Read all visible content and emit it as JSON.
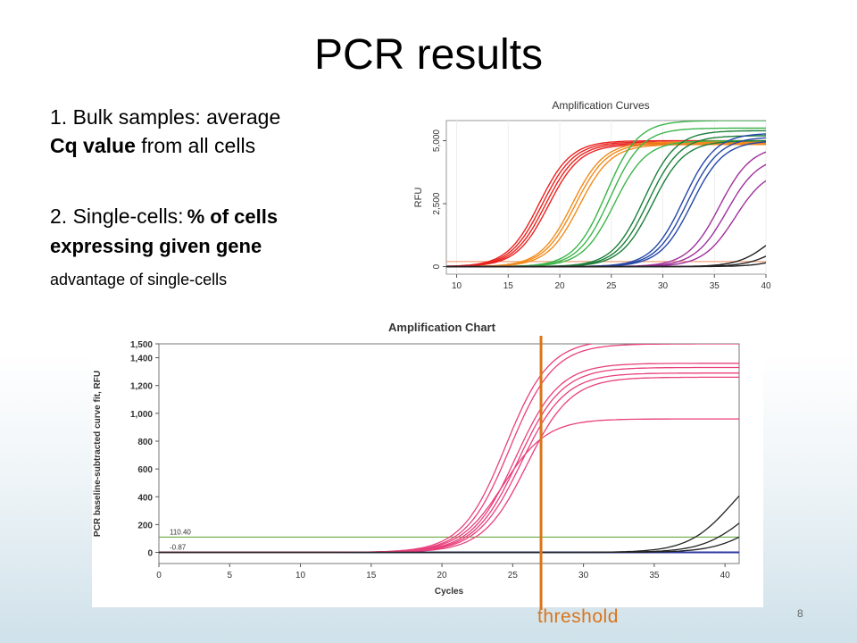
{
  "slide": {
    "title": "PCR results",
    "page_number": "8",
    "bullet1_line1": "1. Bulk samples: average",
    "bullet1_bold": "Cq value",
    "bullet1_rest": " from all cells",
    "bullet2_lead": "2. Single-cells:",
    "bullet2_bold1": "% of cells",
    "bullet2_bold2": "expressing given gene",
    "note": "advantage of single-cells",
    "threshold_label": "threshold"
  },
  "chart_data": [
    {
      "type": "line",
      "title": "Amplification Curves",
      "xlabel": "",
      "ylabel": "RFU",
      "xlim": [
        9,
        40
      ],
      "ylim": [
        -300,
        5800
      ],
      "x_ticks": [
        "10",
        "15",
        "20",
        "25",
        "30",
        "35",
        "40"
      ],
      "y_ticks": [
        "0",
        "2,500",
        "5,000"
      ],
      "threshold": 200,
      "series": [
        {
          "color": "#e8231f",
          "curves": [
            {
              "c": 18.0,
              "p": 5000
            },
            {
              "c": 18.3,
              "p": 4950
            },
            {
              "c": 18.6,
              "p": 4900
            },
            {
              "c": 18.9,
              "p": 4850
            }
          ]
        },
        {
          "color": "#f28b1c",
          "curves": [
            {
              "c": 21.2,
              "p": 4950
            },
            {
              "c": 21.5,
              "p": 4900
            },
            {
              "c": 21.9,
              "p": 4850
            }
          ]
        },
        {
          "color": "#3cb54a",
          "curves": [
            {
              "c": 24.5,
              "p": 5800
            },
            {
              "c": 24.9,
              "p": 5500
            },
            {
              "c": 25.3,
              "p": 5000
            }
          ]
        },
        {
          "color": "#1b7f3a",
          "curves": [
            {
              "c": 28.2,
              "p": 5400
            },
            {
              "c": 28.6,
              "p": 5200
            },
            {
              "c": 29.0,
              "p": 5000
            }
          ]
        },
        {
          "color": "#2447a8",
          "curves": [
            {
              "c": 32.0,
              "p": 5300
            },
            {
              "c": 32.4,
              "p": 5150
            },
            {
              "c": 32.8,
              "p": 5000
            }
          ]
        },
        {
          "color": "#a0309d",
          "curves": [
            {
              "c": 35.5,
              "p": 4800
            },
            {
              "c": 36.2,
              "p": 4400
            },
            {
              "c": 37.0,
              "p": 3900
            }
          ]
        },
        {
          "color": "#222222",
          "curves": [
            {
              "c": 40.5,
              "p": 2000
            },
            {
              "c": 41.5,
              "p": 1500
            },
            {
              "c": 43.0,
              "p": 1200
            }
          ]
        }
      ]
    },
    {
      "type": "line",
      "title": "Amplification Chart",
      "xlabel": "Cycles",
      "ylabel": "PCR baseline-subtracted curve fit, RFU",
      "xlim": [
        0,
        41
      ],
      "ylim": [
        -80,
        1500
      ],
      "x_ticks": [
        "0",
        "5",
        "10",
        "15",
        "20",
        "25",
        "30",
        "35",
        "40"
      ],
      "y_ticks": [
        "0",
        "200",
        "400",
        "600",
        "800",
        "1,000",
        "1,200",
        "1,400",
        "1,500"
      ],
      "threshold_lines": [
        {
          "value": 110.4,
          "label": "110.40"
        },
        {
          "value": -0.87,
          "label": "-0.87"
        }
      ],
      "threshold_marker_cycle": 27,
      "series": [
        {
          "color": "#e8407c",
          "curves": [
            {
              "c": 24.5,
              "p": 1530
            },
            {
              "c": 24.8,
              "p": 1500
            },
            {
              "c": 25.2,
              "p": 1360
            },
            {
              "c": 25.4,
              "p": 1330
            },
            {
              "c": 25.6,
              "p": 1290
            },
            {
              "c": 26.0,
              "p": 1260
            },
            {
              "c": 24.3,
              "p": 960
            }
          ]
        },
        {
          "color": "#222222",
          "curves": [
            {
              "c": 40.5,
              "p": 700
            },
            {
              "c": 41.5,
              "p": 500
            },
            {
              "c": 42.5,
              "p": 400
            }
          ]
        }
      ]
    }
  ]
}
